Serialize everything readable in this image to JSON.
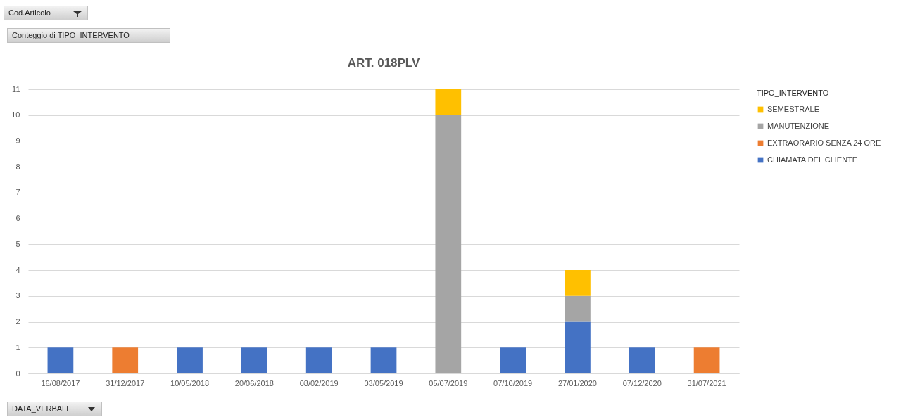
{
  "chart_data": {
    "type": "bar",
    "title": "ART. 018PLV",
    "legend_title": "TIPO_INTERVENTO",
    "annotations": [
      "Cod.Articolo",
      "Conteggio di TIPO_INTERVENTO",
      "DATA_VERBALE"
    ],
    "categories": [
      "16/08/2017",
      "31/12/2017",
      "10/05/2018",
      "20/06/2018",
      "08/02/2019",
      "03/05/2019",
      "05/07/2019",
      "07/10/2019",
      "27/01/2020",
      "07/12/2020",
      "31/07/2021"
    ],
    "stacked": true,
    "series": [
      {
        "name": "CHIAMATA DEL CLIENTE",
        "color": "#4472c4",
        "values": [
          1,
          null,
          1,
          1,
          1,
          1,
          null,
          1,
          2,
          1,
          null
        ]
      },
      {
        "name": "EXTRAORARIO SENZA 24 ORE",
        "color": "#ed7d31",
        "values": [
          null,
          1,
          null,
          null,
          null,
          null,
          null,
          null,
          null,
          null,
          1
        ]
      },
      {
        "name": "MANUTENZIONE",
        "color": "#a5a5a5",
        "values": [
          null,
          null,
          null,
          null,
          null,
          null,
          10,
          null,
          1,
          null,
          null
        ]
      },
      {
        "name": "SEMESTRALE",
        "color": "#ffc000",
        "values": [
          null,
          null,
          null,
          null,
          null,
          null,
          1,
          null,
          1,
          null,
          null
        ]
      }
    ],
    "ylim": [
      0,
      11
    ],
    "yticks": [
      0,
      1,
      2,
      3,
      4,
      5,
      6,
      7,
      8,
      9,
      10,
      11
    ],
    "grid": "y",
    "legend": "right"
  }
}
